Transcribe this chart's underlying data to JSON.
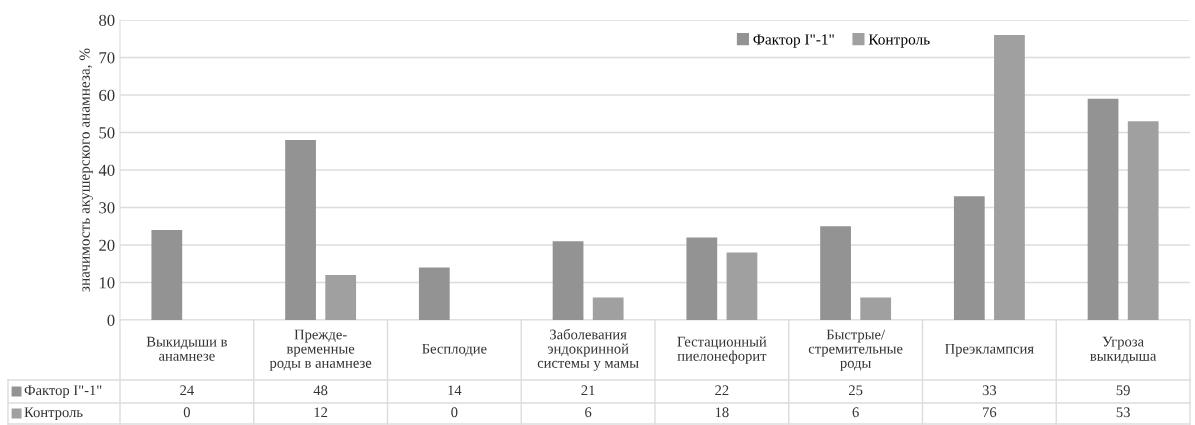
{
  "chart_data": {
    "type": "bar",
    "ylabel": "значимость акушерского анамнеза, %",
    "categories": [
      "Выкидыши в\nанамнезе",
      "Преждe-\nвременные\nроды в анамнезе",
      "Бесплодие",
      "Заболевания\nэндокринной\nсистемы у мамы",
      "Гестационный\nпиелонефорит",
      "Быстрые/\nстремительные\nроды",
      "Преэклампсия",
      "Угроза\nвыкидыша"
    ],
    "series": [
      {
        "name": "Фактор I\"-1\"",
        "color": "#939393",
        "values": [
          24,
          48,
          14,
          21,
          22,
          25,
          33,
          59
        ]
      },
      {
        "name": "Контроль",
        "color": "#a0a0a0",
        "values": [
          0,
          12,
          0,
          6,
          18,
          6,
          76,
          53
        ]
      }
    ],
    "ylim": [
      0,
      80
    ],
    "yticks": [
      0,
      10,
      20,
      30,
      40,
      50,
      60,
      70,
      80
    ],
    "grid": "y",
    "legend": "top right",
    "data_labels": true
  }
}
